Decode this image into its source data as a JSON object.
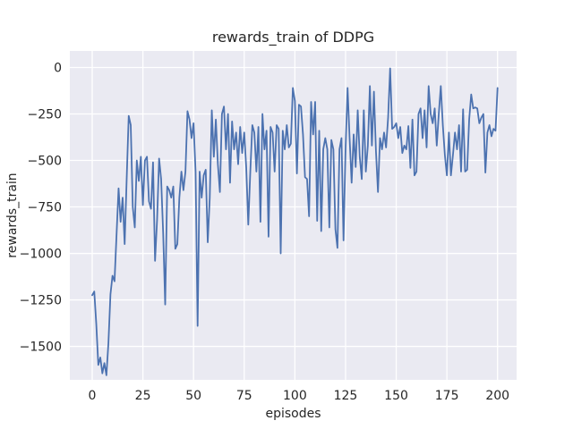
{
  "chart_data": {
    "type": "line",
    "title": "rewards_train of DDPG",
    "xlabel": "episodes",
    "ylabel": "rewards_train",
    "x_ticks": [
      0,
      25,
      50,
      75,
      100,
      125,
      150,
      175,
      200
    ],
    "y_ticks": [
      0,
      -250,
      -500,
      -750,
      -1000,
      -1250,
      -1500
    ],
    "xlim": [
      -11.05,
      209.4
    ],
    "ylim": [
      -1680,
      89
    ],
    "grid": true,
    "legend_position": "none",
    "style": {
      "line_color": "#4c72b0",
      "plot_background": "#eaeaf2",
      "grid_color": "#ffffff",
      "text_color": "#262626",
      "figure_background": "#ffffff"
    },
    "series": [
      {
        "name": "rewards_train",
        "x_start": 0,
        "x_step": 1,
        "values": [
          -1225,
          -1205,
          -1380,
          -1600,
          -1560,
          -1645,
          -1590,
          -1655,
          -1480,
          -1220,
          -1120,
          -1150,
          -900,
          -650,
          -830,
          -700,
          -950,
          -600,
          -260,
          -310,
          -750,
          -860,
          -500,
          -610,
          -480,
          -740,
          -500,
          -480,
          -720,
          -760,
          -510,
          -1040,
          -820,
          -490,
          -600,
          -890,
          -1275,
          -640,
          -660,
          -700,
          -640,
          -975,
          -950,
          -700,
          -560,
          -660,
          -560,
          -235,
          -280,
          -380,
          -300,
          -560,
          -1390,
          -560,
          -700,
          -580,
          -550,
          -940,
          -700,
          -230,
          -480,
          -280,
          -520,
          -670,
          -250,
          -210,
          -440,
          -250,
          -620,
          -290,
          -440,
          -350,
          -520,
          -320,
          -460,
          -350,
          -540,
          -845,
          -560,
          -310,
          -350,
          -560,
          -320,
          -830,
          -250,
          -440,
          -340,
          -910,
          -320,
          -350,
          -560,
          -310,
          -330,
          -1000,
          -340,
          -440,
          -310,
          -430,
          -410,
          -110,
          -180,
          -570,
          -200,
          -210,
          -360,
          -590,
          -600,
          -800,
          -185,
          -360,
          -185,
          -825,
          -340,
          -880,
          -440,
          -380,
          -440,
          -860,
          -390,
          -440,
          -870,
          -970,
          -440,
          -380,
          -930,
          -440,
          -110,
          -380,
          -620,
          -360,
          -535,
          -230,
          -480,
          -600,
          -230,
          -560,
          -420,
          -100,
          -420,
          -130,
          -450,
          -670,
          -380,
          -440,
          -350,
          -430,
          -270,
          -5,
          -330,
          -320,
          -300,
          -380,
          -320,
          -460,
          -420,
          -440,
          -315,
          -540,
          -280,
          -580,
          -560,
          -250,
          -220,
          -380,
          -230,
          -430,
          -100,
          -250,
          -300,
          -220,
          -420,
          -250,
          -100,
          -310,
          -470,
          -580,
          -350,
          -580,
          -470,
          -350,
          -440,
          -310,
          -560,
          -225,
          -560,
          -550,
          -280,
          -145,
          -220,
          -215,
          -220,
          -300,
          -270,
          -250,
          -565,
          -350,
          -310,
          -370,
          -330,
          -340,
          -110
        ]
      }
    ]
  }
}
